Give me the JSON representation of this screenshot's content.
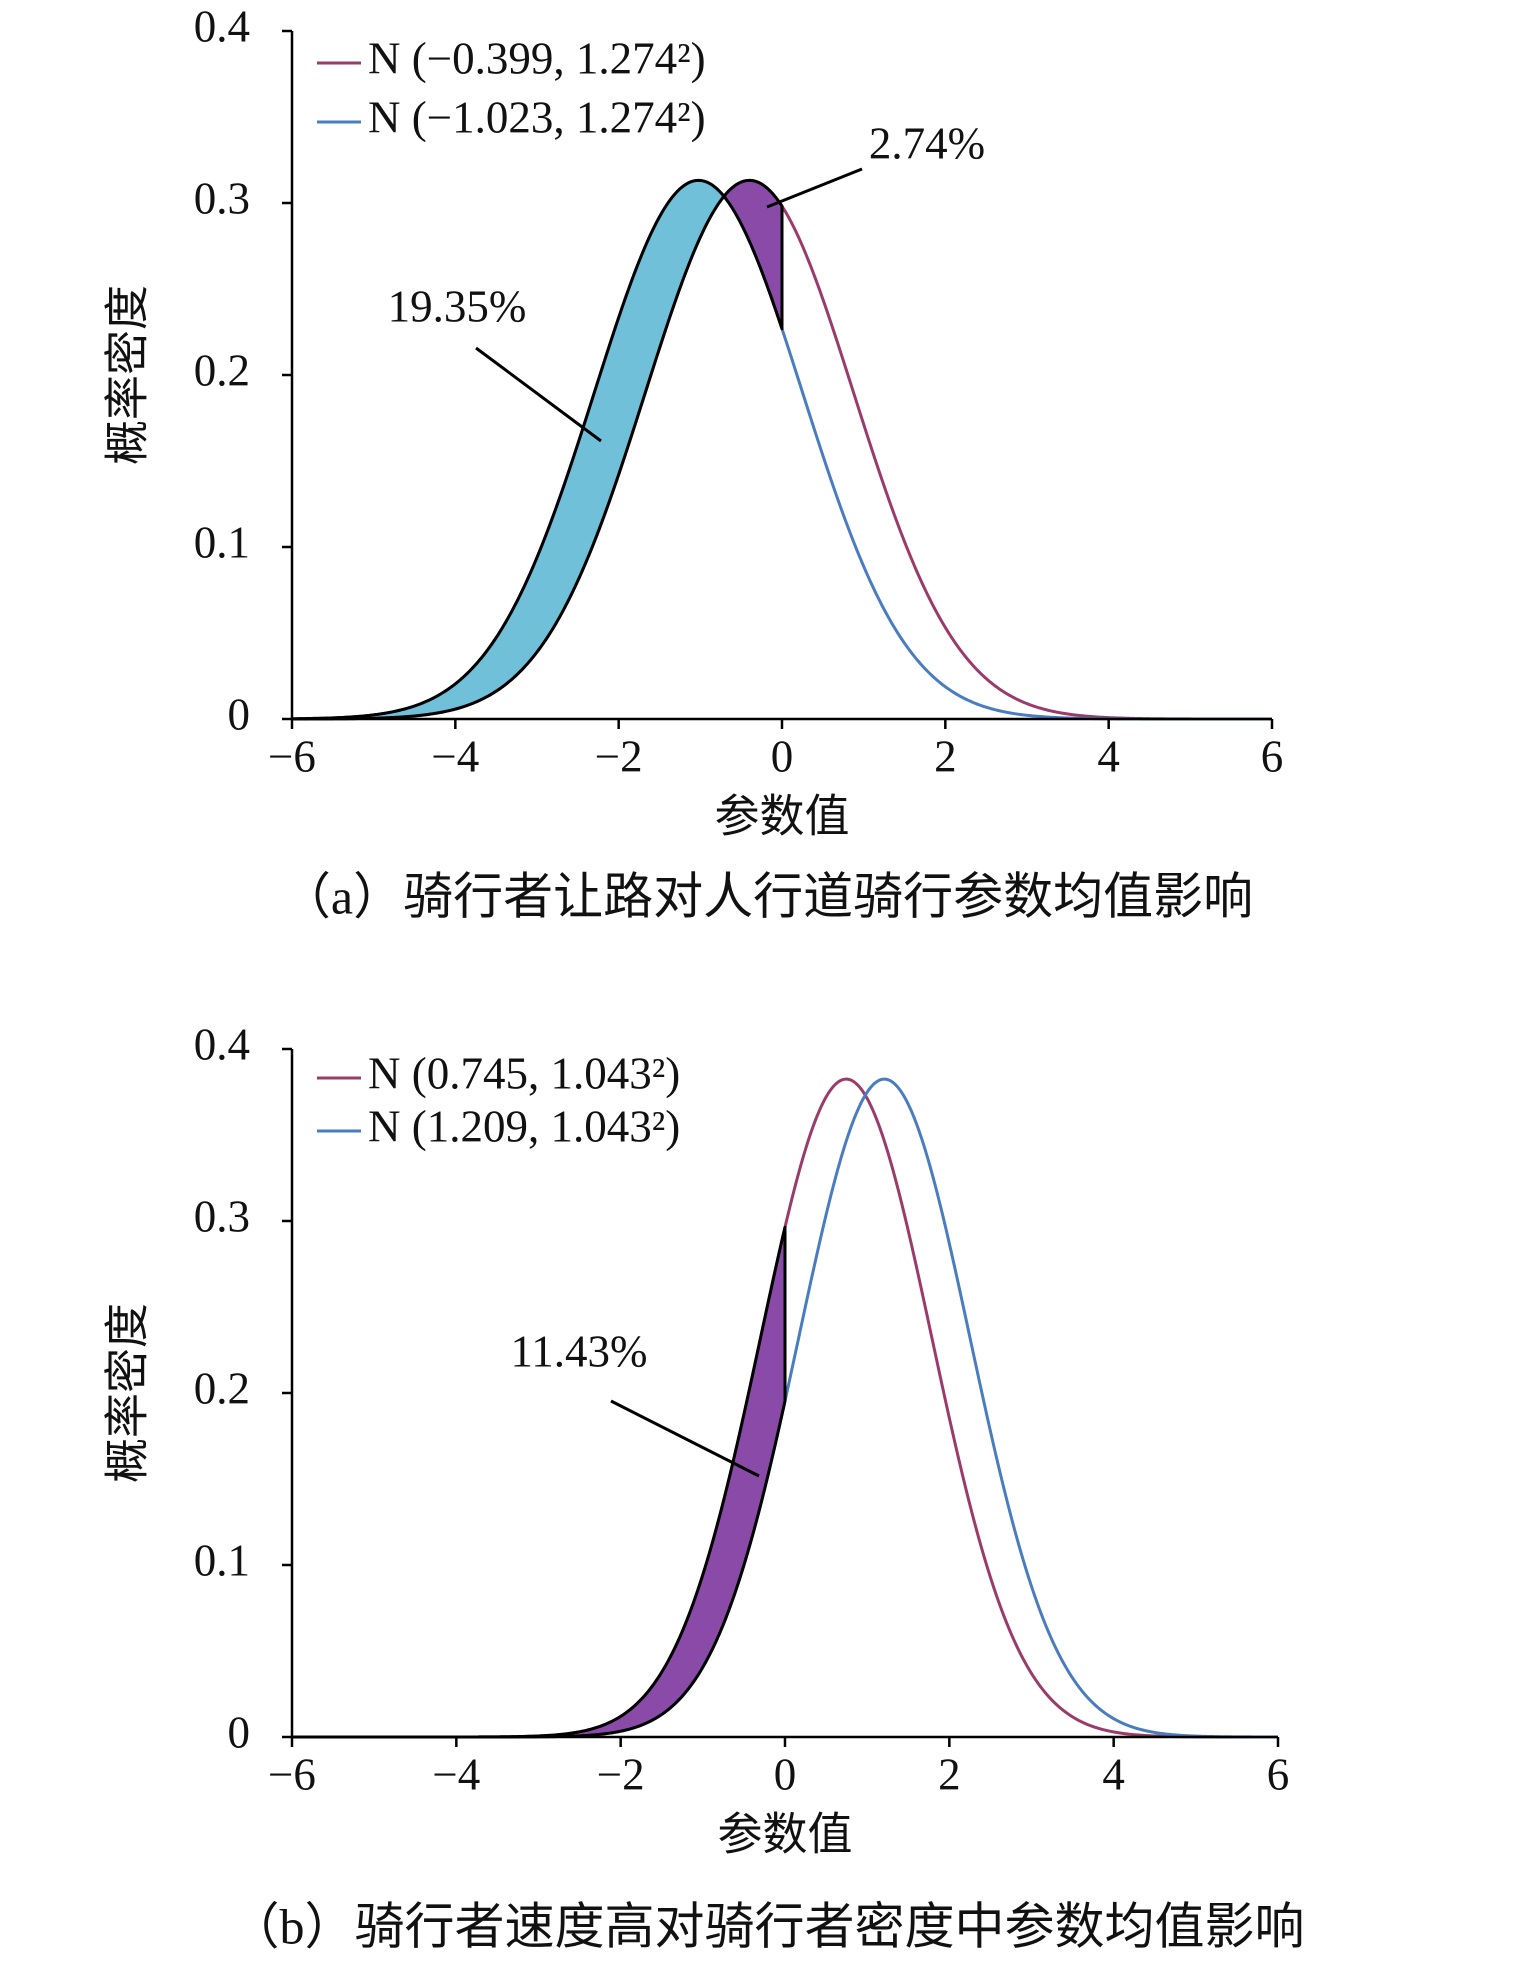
{
  "chart_data": [
    {
      "type": "normal",
      "xlabel": "参数值",
      "ylabel": "概率密度",
      "caption": "（a）骑行者让路对人行道骑行参数均值影响",
      "xlim": [
        -6,
        6
      ],
      "xticks": [
        {
          "value": -6,
          "label": "−6"
        },
        {
          "value": -4,
          "label": "−4"
        },
        {
          "value": -2,
          "label": "−2"
        },
        0,
        2,
        4,
        6
      ],
      "ylim": [
        0,
        0.4
      ],
      "yticks": [
        0,
        0.1,
        0.2,
        0.3,
        0.4
      ],
      "fill_to": 0,
      "series": [
        {
          "name": "N (−0.399, 1.274²)",
          "mean": -0.399,
          "sd": 1.274,
          "color": "#9b3b6a",
          "fill": "#8a4aa8"
        },
        {
          "name": "N (−1.023, 1.274²)",
          "mean": -1.023,
          "sd": 1.274,
          "color": "#4a7cc0",
          "fill": "#6fc0d8"
        }
      ],
      "annotations": [
        "2.74%",
        "19.35%"
      ]
    },
    {
      "type": "normal",
      "xlabel": "参数值",
      "ylabel": "概率密度",
      "caption": "（b）骑行者速度高对骑行者密度中参数均值影响",
      "xlim": [
        -6,
        6
      ],
      "xticks": [
        {
          "value": -6,
          "label": "−6"
        },
        {
          "value": -4,
          "label": "−4"
        },
        {
          "value": -2,
          "label": "−2"
        },
        0,
        2,
        4,
        6
      ],
      "ylim": [
        0,
        0.4
      ],
      "yticks": [
        0,
        0.1,
        0.2,
        0.3,
        0.4
      ],
      "fill_to": 0,
      "series": [
        {
          "name": "N (0.745, 1.043²)",
          "mean": 0.745,
          "sd": 1.043,
          "color": "#9b3b6a",
          "fill": "#8a4aa8"
        },
        {
          "name": "N (1.209, 1.043²)",
          "mean": 1.209,
          "sd": 1.043,
          "color": "#4a7cc0"
        }
      ],
      "annotations": [
        "11.43%"
      ]
    }
  ]
}
